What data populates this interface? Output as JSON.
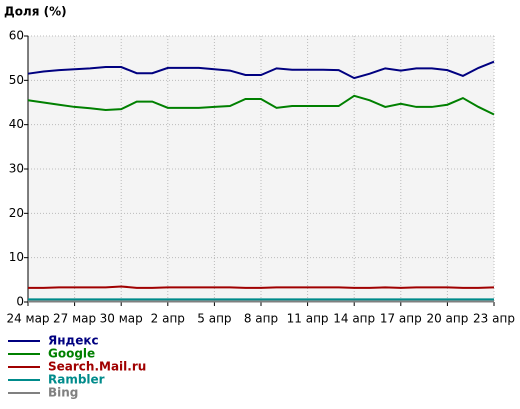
{
  "chart_data": {
    "type": "line",
    "title": "Доля (%)",
    "categories": [
      "24 мар",
      null,
      null,
      "27 мар",
      null,
      null,
      "30 мар",
      null,
      null,
      "2 апр",
      null,
      null,
      "5 апр",
      null,
      null,
      "8 апр",
      null,
      null,
      "11 апр",
      null,
      null,
      "14 апр",
      null,
      null,
      "17 апр",
      null,
      null,
      "20 апр",
      null,
      null,
      "23 апр"
    ],
    "series": [
      {
        "name": "Яндекс",
        "color": "#000080",
        "values": [
          51.5,
          52,
          52.3,
          52.5,
          52.7,
          53,
          53,
          51.6,
          51.6,
          52.8,
          52.8,
          52.8,
          52.5,
          52.2,
          51.2,
          51.2,
          52.7,
          52.4,
          52.4,
          52.4,
          52.3,
          50.5,
          51.5,
          52.7,
          52.2,
          52.7,
          52.7,
          52.3,
          51,
          52.8,
          54.2
        ]
      },
      {
        "name": "Google",
        "color": "#008000",
        "values": [
          45.5,
          45,
          44.5,
          44,
          43.7,
          43.3,
          43.5,
          45.2,
          45.2,
          43.8,
          43.8,
          43.8,
          44,
          44.2,
          45.8,
          45.8,
          43.8,
          44.2,
          44.2,
          44.2,
          44.2,
          46.5,
          45.5,
          44,
          44.7,
          44,
          44,
          44.5,
          46,
          44,
          42.3
        ]
      },
      {
        "name": "Search.Mail.ru",
        "color": "#a00000",
        "values": [
          3.2,
          3.2,
          3.3,
          3.3,
          3.3,
          3.3,
          3.5,
          3.2,
          3.2,
          3.3,
          3.3,
          3.3,
          3.3,
          3.3,
          3.2,
          3.2,
          3.3,
          3.3,
          3.3,
          3.3,
          3.3,
          3.2,
          3.2,
          3.3,
          3.2,
          3.3,
          3.3,
          3.3,
          3.2,
          3.2,
          3.3
        ]
      },
      {
        "name": "Rambler",
        "color": "#008b8b",
        "values": [
          0.6,
          0.6,
          0.6,
          0.6,
          0.6,
          0.6,
          0.6,
          0.6,
          0.6,
          0.6,
          0.6,
          0.6,
          0.6,
          0.6,
          0.6,
          0.6,
          0.6,
          0.6,
          0.6,
          0.6,
          0.6,
          0.6,
          0.6,
          0.6,
          0.6,
          0.6,
          0.6,
          0.6,
          0.6,
          0.6,
          0.6
        ]
      },
      {
        "name": "Bing",
        "color": "#808080",
        "values": [
          0.1,
          0.1,
          0.1,
          0.1,
          0.1,
          0.1,
          0.1,
          0.1,
          0.1,
          0.1,
          0.1,
          0.1,
          0.1,
          0.1,
          0.1,
          0.1,
          0.1,
          0.1,
          0.1,
          0.1,
          0.1,
          0.1,
          0.1,
          0.1,
          0.1,
          0.1,
          0.1,
          0.1,
          0.1,
          0.1,
          0.1
        ]
      }
    ],
    "ylim": [
      0,
      60
    ],
    "yticks": [
      0,
      10,
      20,
      30,
      40,
      50,
      60
    ],
    "grid": true
  }
}
